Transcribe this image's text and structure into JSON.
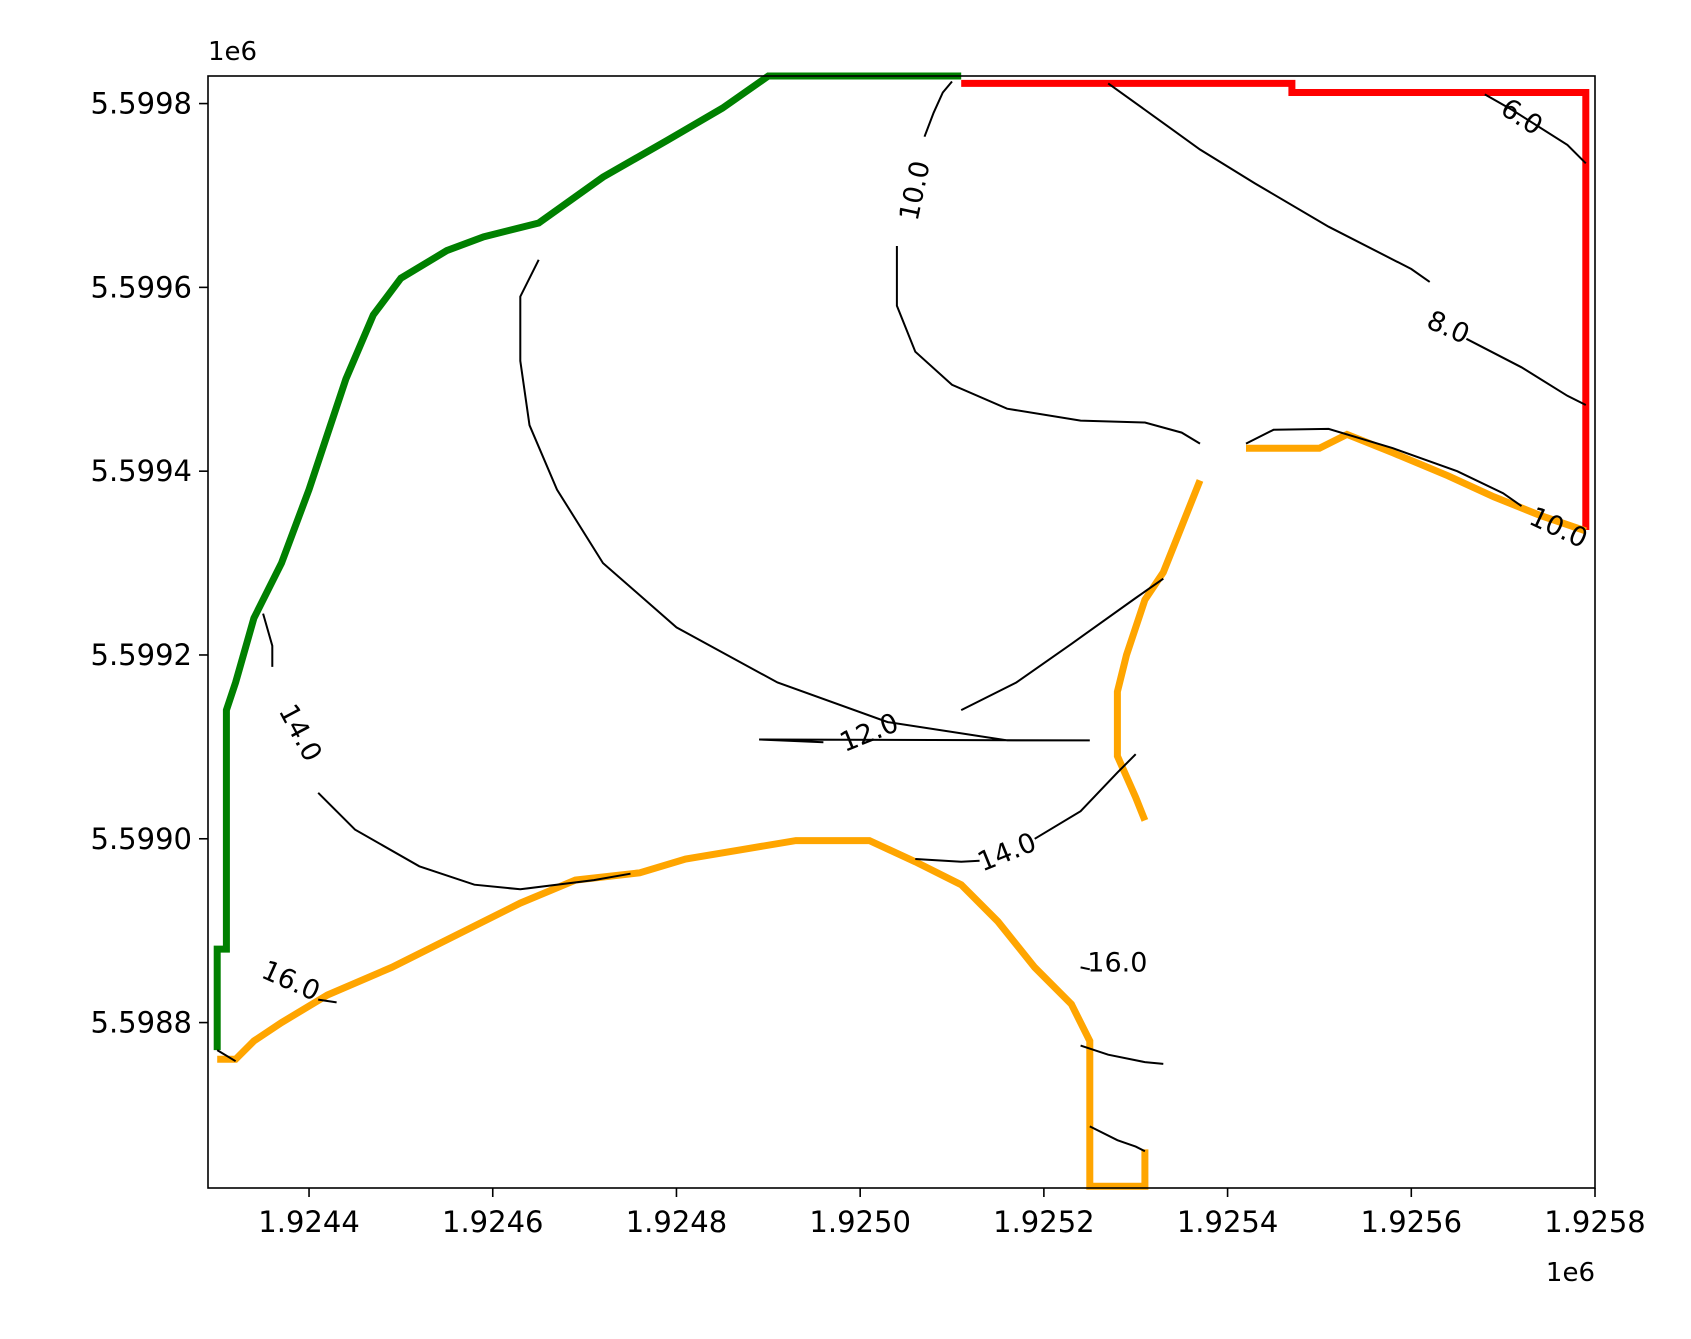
{
  "chart_data": {
    "type": "contour",
    "title": "",
    "xlabel": "",
    "ylabel": "",
    "x_offset_text": "1e6",
    "y_offset_text": "1e6",
    "xlim": [
      1.92429,
      1.9258
    ],
    "ylim": [
      5.59862,
      5.59983
    ],
    "x_ticks": [
      "1.9244",
      "1.9246",
      "1.9248",
      "1.9250",
      "1.9252",
      "1.9254",
      "1.9256",
      "1.9258"
    ],
    "y_ticks": [
      "5.5988",
      "5.5990",
      "5.5992",
      "5.5994",
      "5.5996",
      "5.5998"
    ],
    "contour_levels": [
      "6.0",
      "8.0",
      "10.0",
      "12.0",
      "14.0",
      "16.0"
    ],
    "contour_labels": [
      {
        "text": "6.0",
        "x": 1.92572,
        "y": 5.599785,
        "rotation": 33
      },
      {
        "text": "8.0",
        "x": 1.92564,
        "y": 5.599556,
        "rotation": 24
      },
      {
        "text": "10.0",
        "x": 1.92506,
        "y": 5.599705,
        "rotation": -78
      },
      {
        "text": "10.0",
        "x": 1.92576,
        "y": 5.599338,
        "rotation": 25
      },
      {
        "text": "12.0",
        "x": 1.92501,
        "y": 5.599115,
        "rotation": -22
      },
      {
        "text": "14.0",
        "x": 1.92439,
        "y": 5.599115,
        "rotation": 62
      },
      {
        "text": "14.0",
        "x": 1.92516,
        "y": 5.598985,
        "rotation": -22
      },
      {
        "text": "16.0",
        "x": 1.92438,
        "y": 5.598845,
        "rotation": 24
      },
      {
        "text": "16.0",
        "x": 1.92528,
        "y": 5.598865,
        "rotation": 0
      }
    ],
    "contour_lines": [
      {
        "level": "6.0",
        "points": [
          [
            1.92568,
            5.59981
          ],
          [
            1.92571,
            5.599793
          ],
          [
            1.92577,
            5.599755
          ],
          [
            1.92579,
            5.599735
          ]
        ]
      },
      {
        "level": "8.0",
        "points": [
          [
            1.92527,
            5.599822
          ],
          [
            1.92532,
            5.599786
          ],
          [
            1.92537,
            5.59975
          ],
          [
            1.92543,
            5.599713
          ],
          [
            1.92551,
            5.599666
          ],
          [
            1.9256,
            5.59962
          ],
          [
            1.92562,
            5.599606
          ]
        ]
      },
      {
        "level": "8.0",
        "points": [
          [
            1.92566,
            5.599544
          ],
          [
            1.92572,
            5.599513
          ],
          [
            1.92577,
            5.599482
          ],
          [
            1.92579,
            5.599472
          ]
        ]
      },
      {
        "level": "10.0",
        "points": [
          [
            1.9251,
            5.599824
          ],
          [
            1.92509,
            5.599812
          ],
          [
            1.92508,
            5.59979
          ],
          [
            1.92507,
            5.599764
          ]
        ]
      },
      {
        "level": "10.0",
        "points": [
          [
            1.92504,
            5.599645
          ],
          [
            1.92504,
            5.59962
          ],
          [
            1.92504,
            5.59958
          ],
          [
            1.92506,
            5.59953
          ],
          [
            1.9251,
            5.599494
          ],
          [
            1.92516,
            5.599468
          ],
          [
            1.92524,
            5.599455
          ],
          [
            1.92531,
            5.599453
          ],
          [
            1.92535,
            5.599442
          ],
          [
            1.92537,
            5.59943
          ]
        ]
      },
      {
        "level": "10.0",
        "points": [
          [
            1.92542,
            5.59943
          ],
          [
            1.92545,
            5.599445
          ],
          [
            1.92551,
            5.599446
          ],
          [
            1.92558,
            5.599425
          ],
          [
            1.92565,
            5.5994
          ],
          [
            1.9257,
            5.599376
          ],
          [
            1.92572,
            5.599362
          ]
        ]
      },
      {
        "level": "12.0",
        "points": [
          [
            1.92465,
            5.59963
          ],
          [
            1.92463,
            5.59959
          ],
          [
            1.92463,
            5.59952
          ],
          [
            1.92464,
            5.59945
          ],
          [
            1.92467,
            5.59938
          ],
          [
            1.92472,
            5.5993
          ],
          [
            1.9248,
            5.59923
          ],
          [
            1.92491,
            5.59917
          ],
          [
            1.92503,
            5.599127
          ],
          [
            1.92516,
            5.599107
          ],
          [
            1.92525,
            5.599107
          ],
          [
            1.92489,
            5.599108
          ],
          [
            1.92496,
            5.599105
          ]
        ]
      },
      {
        "level": "12.0",
        "points": [
          [
            1.92511,
            5.59914
          ],
          [
            1.92517,
            5.59917
          ],
          [
            1.92523,
            5.599212
          ],
          [
            1.9253,
            5.599262
          ],
          [
            1.92533,
            5.599283
          ]
        ]
      },
      {
        "level": "14.0",
        "points": [
          [
            1.92435,
            5.599245
          ],
          [
            1.92436,
            5.59921
          ],
          [
            1.92436,
            5.599187
          ]
        ]
      },
      {
        "level": "14.0",
        "points": [
          [
            1.92441,
            5.59905
          ],
          [
            1.92445,
            5.59901
          ],
          [
            1.92452,
            5.59897
          ],
          [
            1.92458,
            5.59895
          ],
          [
            1.92463,
            5.598945
          ],
          [
            1.92471,
            5.598955
          ],
          [
            1.92475,
            5.598962
          ]
        ]
      },
      {
        "level": "14.0",
        "points": [
          [
            1.92506,
            5.598978
          ],
          [
            1.92511,
            5.598975
          ],
          [
            1.92513,
            5.598976
          ]
        ]
      },
      {
        "level": "14.0",
        "points": [
          [
            1.92519,
            5.599
          ],
          [
            1.92524,
            5.59903
          ],
          [
            1.92528,
            5.599072
          ],
          [
            1.9253,
            5.599092
          ]
        ]
      },
      {
        "level": "16.0",
        "points": [
          [
            1.9243,
            5.59877
          ],
          [
            1.92432,
            5.598758
          ]
        ]
      },
      {
        "level": "16.0",
        "points": [
          [
            1.92441,
            5.598825
          ],
          [
            1.92443,
            5.598822
          ]
        ]
      },
      {
        "level": "16.0",
        "points": [
          [
            1.92524,
            5.59886
          ],
          [
            1.92525,
            5.598858
          ]
        ]
      },
      {
        "level": "16.0",
        "points": [
          [
            1.92524,
            5.598775
          ],
          [
            1.92527,
            5.598765
          ],
          [
            1.92531,
            5.598757
          ],
          [
            1.92533,
            5.598755
          ]
        ]
      },
      {
        "level": "16.0",
        "points": [
          [
            1.92525,
            5.598687
          ],
          [
            1.92528,
            5.598672
          ],
          [
            1.9253,
            5.598665
          ],
          [
            1.92531,
            5.59866
          ]
        ]
      }
    ],
    "boundary_segments": [
      {
        "color": "#008000",
        "points": [
          [
            1.9243,
            5.59877
          ],
          [
            1.9243,
            5.59888
          ],
          [
            1.92431,
            5.59888
          ],
          [
            1.92431,
            5.59914
          ],
          [
            1.92432,
            5.59917
          ],
          [
            1.92434,
            5.59924
          ],
          [
            1.92437,
            5.5993
          ],
          [
            1.9244,
            5.59938
          ],
          [
            1.92442,
            5.59944
          ],
          [
            1.92444,
            5.5995
          ],
          [
            1.92447,
            5.59957
          ],
          [
            1.9245,
            5.59961
          ],
          [
            1.92455,
            5.59964
          ],
          [
            1.92459,
            5.599655
          ],
          [
            1.92465,
            5.59967
          ],
          [
            1.92472,
            5.59972
          ],
          [
            1.92479,
            5.59976
          ],
          [
            1.92485,
            5.599795
          ],
          [
            1.9249,
            5.59983
          ],
          [
            1.92511,
            5.59983
          ]
        ]
      },
      {
        "color": "#ff0000",
        "points": [
          [
            1.92511,
            5.599822
          ],
          [
            1.92547,
            5.599822
          ],
          [
            1.92547,
            5.599812
          ],
          [
            1.92579,
            5.599812
          ],
          [
            1.92579,
            5.599336
          ]
        ]
      },
      {
        "color": "#ffa500",
        "points": [
          [
            1.9243,
            5.59876
          ],
          [
            1.92432,
            5.59876
          ],
          [
            1.92434,
            5.59878
          ],
          [
            1.92437,
            5.5988
          ],
          [
            1.92442,
            5.59883
          ],
          [
            1.92449,
            5.59886
          ],
          [
            1.92456,
            5.598895
          ],
          [
            1.92463,
            5.59893
          ],
          [
            1.92469,
            5.598955
          ],
          [
            1.92476,
            5.598963
          ],
          [
            1.92481,
            5.598978
          ],
          [
            1.92487,
            5.598988
          ],
          [
            1.92493,
            5.598998
          ],
          [
            1.92501,
            5.598998
          ],
          [
            1.92506,
            5.598975
          ],
          [
            1.92511,
            5.59895
          ],
          [
            1.92515,
            5.59891
          ],
          [
            1.92519,
            5.59886
          ],
          [
            1.92523,
            5.59882
          ],
          [
            1.92525,
            5.59878
          ],
          [
            1.92525,
            5.59873
          ],
          [
            1.92525,
            5.598622
          ],
          [
            1.92531,
            5.598622
          ],
          [
            1.92531,
            5.598662
          ]
        ]
      },
      {
        "color": "#ffa500",
        "points": [
          [
            1.92531,
            5.59902
          ],
          [
            1.9253,
            5.599045
          ],
          [
            1.92528,
            5.59909
          ],
          [
            1.92528,
            5.59916
          ],
          [
            1.92529,
            5.5992
          ],
          [
            1.92531,
            5.59926
          ],
          [
            1.92533,
            5.59929
          ],
          [
            1.92535,
            5.59934
          ],
          [
            1.92537,
            5.59939
          ]
        ]
      },
      {
        "color": "#ffa500",
        "points": [
          [
            1.92542,
            5.599425
          ],
          [
            1.9255,
            5.599425
          ],
          [
            1.92553,
            5.59944
          ],
          [
            1.92558,
            5.59942
          ],
          [
            1.92564,
            5.599395
          ],
          [
            1.92569,
            5.599372
          ],
          [
            1.92574,
            5.599352
          ],
          [
            1.92579,
            5.599335
          ]
        ]
      }
    ]
  }
}
